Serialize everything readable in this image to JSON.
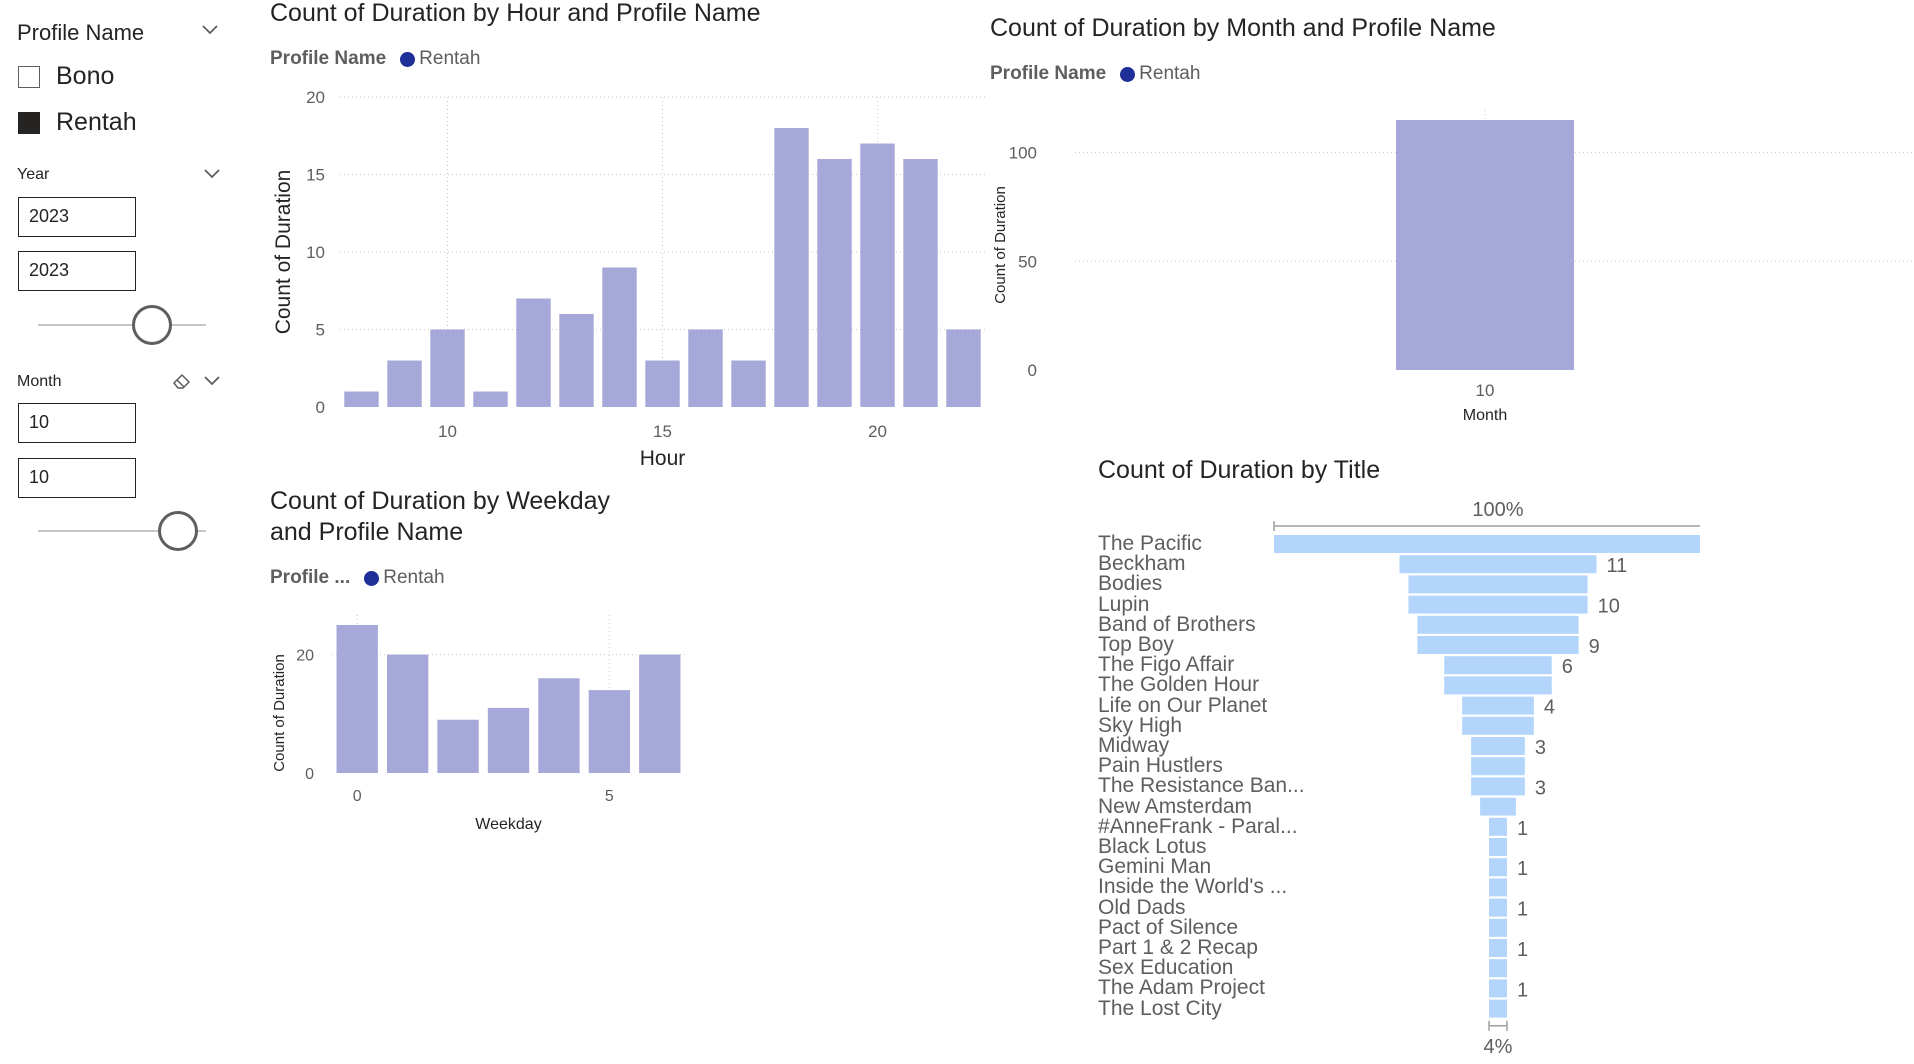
{
  "colors": {
    "bar": "#a5a8d9",
    "funnel_bar": "#b4d5fb",
    "legend_dot": "#1f2f98",
    "text": "#252423",
    "muted": "#605e5c"
  },
  "slicers": {
    "profile": {
      "title": "Profile Name",
      "items": [
        {
          "label": "Bono",
          "checked": false
        },
        {
          "label": "Rentah",
          "checked": true
        }
      ]
    },
    "year": {
      "title": "Year",
      "start": "2023",
      "end": "2023"
    },
    "month": {
      "title": "Month",
      "start": "10",
      "end": "10"
    }
  },
  "charts": {
    "hour": {
      "title": "Count of Duration by Hour and Profile Name",
      "legend_title": "Profile Name",
      "legend_item": "Rentah"
    },
    "month": {
      "title": "Count of Duration by Month and Profile Name",
      "legend_title": "Profile Name",
      "legend_item": "Rentah"
    },
    "weekday": {
      "title_line1": "Count of Duration by Weekday",
      "title_line2": "and Profile Name",
      "legend_title": "Profile ...",
      "legend_item": "Rentah"
    },
    "title": {
      "title": "Count of Duration by Title",
      "top_label": "100%",
      "bottom_label": "4%"
    }
  },
  "chart_data": [
    {
      "type": "bar",
      "title": "Count of Duration by Hour and Profile Name",
      "xlabel": "Hour",
      "ylabel": "Count of Duration",
      "x": [
        8,
        9,
        10,
        11,
        12,
        13,
        14,
        15,
        16,
        17,
        18,
        19,
        20,
        21,
        22
      ],
      "values": [
        1,
        3,
        5,
        1,
        7,
        6,
        9,
        3,
        5,
        3,
        18,
        16,
        17,
        16,
        5
      ],
      "xticks": [
        10,
        15,
        20
      ],
      "yticks": [
        0,
        5,
        10,
        15,
        20
      ],
      "ylim": [
        0,
        20
      ],
      "legend": "top-left",
      "grid": true
    },
    {
      "type": "bar",
      "title": "Count of Duration by Month and Profile Name",
      "xlabel": "Month",
      "ylabel": "Count of Duration",
      "categories": [
        "10"
      ],
      "values": [
        115
      ],
      "yticks": [
        0,
        50,
        100
      ],
      "ylim": [
        0,
        115
      ],
      "legend": "top-left",
      "grid": true
    },
    {
      "type": "bar",
      "title": "Count of Duration by Weekday and Profile Name",
      "xlabel": "Weekday",
      "ylabel": "Count of Duration",
      "x": [
        0,
        1,
        2,
        3,
        4,
        5,
        6
      ],
      "values": [
        25,
        20,
        9,
        11,
        16,
        14,
        20
      ],
      "xticks": [
        0,
        5
      ],
      "yticks": [
        0,
        20
      ],
      "ylim": [
        0,
        25
      ],
      "legend": "top-left",
      "grid": true
    },
    {
      "type": "bar",
      "title": "Count of Duration by Title",
      "categories": [
        "The Pacific",
        "Beckham",
        "Bodies",
        "Lupin",
        "Band of Brothers",
        "Top Boy",
        "The Figo Affair",
        "The Golden Hour",
        "Life on Our Planet",
        "Sky High",
        "Midway",
        "Pain Hustlers",
        "The Resistance Ban...",
        "New Amsterdam",
        "#AnneFrank - Paral...",
        "Black Lotus",
        "Gemini Man",
        "Inside the World's ...",
        "Old Dads",
        "Pact of Silence",
        "Part 1 & 2 Recap",
        "Sex Education",
        "The Adam Project",
        "The Lost City"
      ],
      "values": [
        25,
        11,
        10,
        10,
        9,
        9,
        6,
        6,
        4,
        4,
        3,
        3,
        3,
        2,
        1,
        1,
        1,
        1,
        1,
        1,
        1,
        1,
        1,
        1
      ],
      "data_labels": [
        "",
        "11",
        "",
        "10",
        "",
        "9",
        "6",
        "",
        "4",
        "",
        "3",
        "",
        "3",
        "",
        "1",
        "",
        "1",
        "",
        "1",
        "",
        "1",
        "",
        "1",
        ""
      ],
      "orientation": "funnel",
      "top_percent": "100%",
      "bottom_percent": "4%"
    }
  ]
}
